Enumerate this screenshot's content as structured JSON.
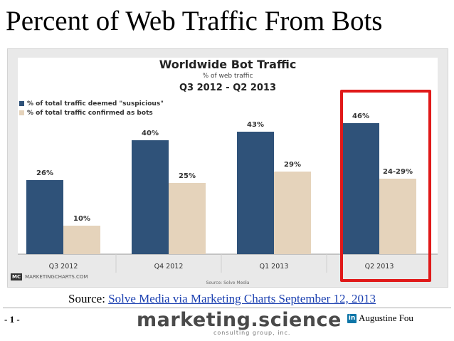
{
  "slide": {
    "title": "Percent of Web Traffic From Bots",
    "source_prefix": "Source:",
    "source_link": "Solve Media via Marketing Charts September 12, 2013",
    "page_number": "- 1 -",
    "brand": "marketing.science",
    "brand_sub": "consulting group, inc.",
    "author": "Augustine Fou",
    "linkedin_icon": "linkedin-icon"
  },
  "colors": {
    "suspicious": "#2f5279",
    "bots": "#e5d3bb",
    "highlight": "#e01919"
  },
  "chart_data": {
    "type": "bar",
    "title": "Worldwide Bot Traffic",
    "subtitle": "% of web traffic",
    "subtitle2": "Q3 2012 - Q2 2013",
    "categories": [
      "Q3 2012",
      "Q4 2012",
      "Q1 2013",
      "Q2 2013"
    ],
    "series": [
      {
        "name": "% of total traffic deemed \"suspicious\"",
        "values": [
          26,
          40,
          43,
          46
        ],
        "labels": [
          "26%",
          "40%",
          "43%",
          "46%"
        ]
      },
      {
        "name": "% of total traffic confirmed as bots",
        "values": [
          10,
          25,
          29,
          26.5
        ],
        "labels": [
          "10%",
          "25%",
          "29%",
          "24-29%"
        ]
      }
    ],
    "ylim": [
      0,
      55
    ],
    "grid": false,
    "legend_position": "top-left",
    "footer_logo": "MC",
    "footer_brand": "MARKETINGCHARTS.COM",
    "footer_source": "Source: Solve Media"
  }
}
